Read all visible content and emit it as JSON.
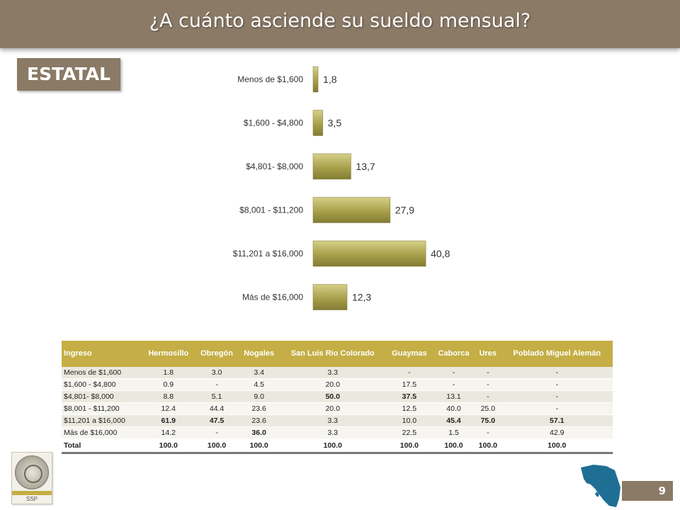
{
  "header": {
    "title": "¿A cuánto asciende su sueldo mensual?"
  },
  "section_label": "ESTATAL",
  "chart_data": {
    "type": "bar",
    "orientation": "horizontal",
    "categories": [
      "Menos de $1,600",
      "$1,600 - $4,800",
      "$4,801- $8,000",
      "$8,001 - $11,200",
      "$11,201 a $16,000",
      "Más de $16,000"
    ],
    "values": [
      1.8,
      3.5,
      13.7,
      27.9,
      40.8,
      12.3
    ],
    "value_labels": [
      "1,8",
      "3,5",
      "13,7",
      "27,9",
      "40,8",
      "12,3"
    ],
    "bar_color": "#a8a04a",
    "grid": false,
    "legend": "none"
  },
  "table": {
    "headers": [
      "Ingreso",
      "Hermosillo",
      "Obregón",
      "Nogales",
      "San Luis Rio Colorado",
      "Guaymas",
      "Caborca",
      "Ures",
      "Poblado Miguel Alemán"
    ],
    "rows": [
      [
        "Menos de $1,600",
        "1.8",
        "3.0",
        "3.4",
        "3.3",
        "-",
        "-",
        "-",
        "-"
      ],
      [
        "$1,600 - $4,800",
        "0.9",
        "-",
        "4.5",
        "20.0",
        "17.5",
        "-",
        "-",
        "-"
      ],
      [
        "$4,801- $8,000",
        "8.8",
        "5.1",
        "9.0",
        "50.0",
        "37.5",
        "13.1",
        "-",
        "-"
      ],
      [
        "$8,001 - $11,200",
        "12.4",
        "44.4",
        "23.6",
        "20.0",
        "12.5",
        "40.0",
        "25.0",
        "-"
      ],
      [
        "$11,201 a $16,000",
        "61.9",
        "47.5",
        "23.6",
        "3.3",
        "10.0",
        "45.4",
        "75.0",
        "57.1"
      ],
      [
        "Más de $16,000",
        "14.2",
        "-",
        "36.0",
        "3.3",
        "22.5",
        "1.5",
        "-",
        "42.9"
      ]
    ],
    "bold_cells": [
      [
        4,
        1
      ],
      [
        4,
        2
      ],
      [
        5,
        3
      ],
      [
        2,
        4
      ],
      [
        2,
        5
      ],
      [
        4,
        6
      ],
      [
        4,
        7
      ],
      [
        4,
        8
      ]
    ],
    "total": [
      "Total",
      "100.0",
      "100.0",
      "100.0",
      "100.0",
      "100.0",
      "100.0",
      "100.0",
      "100.0"
    ]
  },
  "logo": {
    "text": "SSP"
  },
  "page_number": "9",
  "colors": {
    "brown": "#8a7a66",
    "gold": "#c4ae45",
    "map_blue": "#1f6f94"
  }
}
